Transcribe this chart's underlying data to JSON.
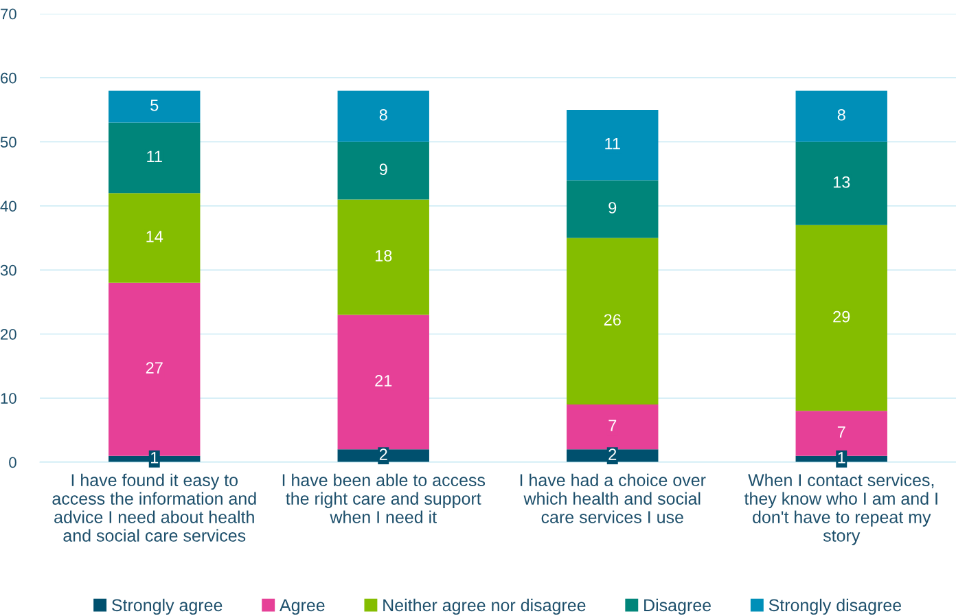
{
  "chart_data": {
    "type": "bar",
    "stacked": true,
    "categories": [
      "I have found it easy to\naccess the information and\nadvice I need about health\nand social care services",
      "I have been able to access\nthe right care and support\nwhen I need it",
      "I have had a choice over\nwhich health and social\ncare services I use",
      "When I contact services,\nthey know who I am and I\ndon't have to repeat my\nstory"
    ],
    "series": [
      {
        "name": "Strongly agree",
        "color": "#00506e",
        "values": [
          1,
          2,
          2,
          1
        ]
      },
      {
        "name": "Agree",
        "color": "#e64097",
        "values": [
          27,
          21,
          7,
          7
        ]
      },
      {
        "name": "Neither agree nor disagree",
        "color": "#84bd00",
        "values": [
          14,
          18,
          26,
          29
        ]
      },
      {
        "name": "Disagree",
        "color": "#00857a",
        "values": [
          11,
          9,
          9,
          13
        ]
      },
      {
        "name": "Strongly disagree",
        "color": "#008fb8",
        "values": [
          5,
          8,
          11,
          8
        ]
      }
    ],
    "ylim": [
      0,
      70
    ],
    "yticks": [
      0,
      10,
      20,
      30,
      40,
      50,
      60,
      70
    ],
    "grid": "y",
    "legend": "bottom",
    "data_labels": true
  }
}
